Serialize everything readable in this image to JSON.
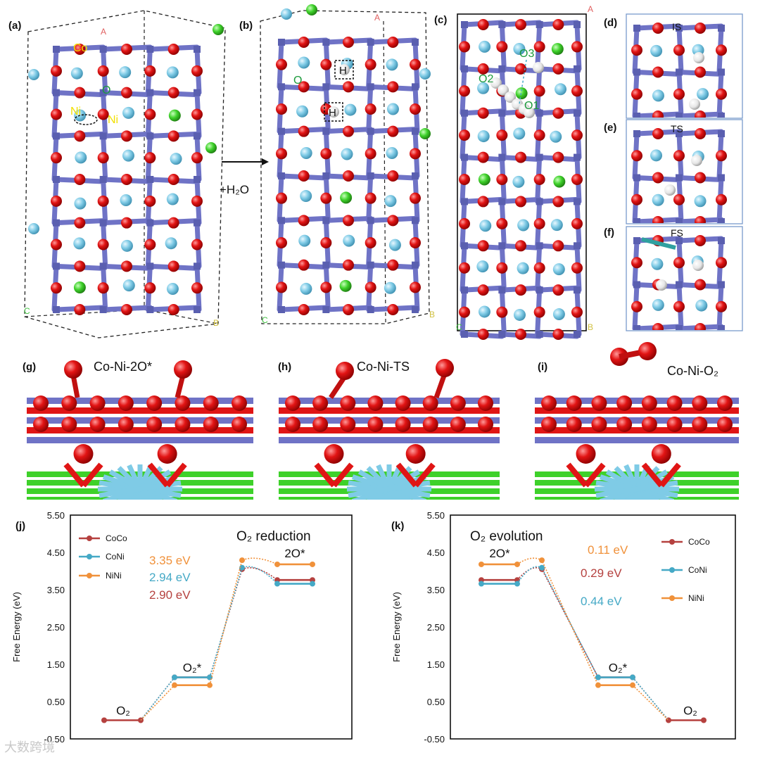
{
  "figure": {
    "panel_labels": {
      "a": "(a)",
      "b": "(b)",
      "c": "(c)",
      "d": "(d)",
      "e": "(e)",
      "f": "(f)",
      "g": "(g)",
      "h": "(h)",
      "i": "(i)",
      "j": "(j)",
      "k": "(k)"
    },
    "panel_a": {
      "atom_labels": [
        "Co",
        "O",
        "Ni",
        "Ni"
      ],
      "axis_labels": [
        "A",
        "C",
        "B"
      ]
    },
    "panel_b": {
      "atom_labels": [
        "O",
        "H",
        "H"
      ],
      "axis_labels": [
        "A",
        "C",
        "B"
      ],
      "arrow_label": "+H₂O"
    },
    "panel_c": {
      "atom_labels": [
        "O3",
        "O2",
        "O1"
      ],
      "axis_labels": [
        "A",
        "C",
        "B"
      ]
    },
    "panel_d": {
      "title": "IS"
    },
    "panel_e": {
      "title": "TS"
    },
    "panel_f": {
      "title": "FS"
    },
    "panel_g": {
      "title": "Co-Ni-2O*"
    },
    "panel_h": {
      "title": "Co-Ni-TS"
    },
    "panel_i": {
      "title": "Co-Ni-O₂"
    },
    "watermark": "大数跨境"
  },
  "colors": {
    "oxygen": "#e01010",
    "metal": "#6f73c6",
    "lightblue": "#7fcbe6",
    "green": "#3ed12a",
    "hydrogen": "#f2f2f2",
    "CoCo": "#b5413f",
    "CoNi": "#45a9c6",
    "NiNi": "#f0913a"
  },
  "chart_data": [
    {
      "type": "line",
      "title": "O₂ reduction",
      "ylabel": "Free Energy (eV)",
      "ylim": [
        -0.5,
        5.5
      ],
      "yticks": [
        "-0.50",
        "0.50",
        "1.50",
        "2.50",
        "3.50",
        "4.50",
        "5.50"
      ],
      "legend": [
        "CoCo",
        "CoNi",
        "NiNi"
      ],
      "state_labels": [
        "O₂",
        "O₂*",
        "2O*"
      ],
      "series": [
        {
          "name": "CoCo",
          "levels": [
            0.0,
            1.15,
            3.76
          ],
          "ts": 4.05
        },
        {
          "name": "CoNi",
          "levels": [
            0.0,
            1.15,
            3.66
          ],
          "ts": 4.09
        },
        {
          "name": "NiNi",
          "levels": [
            0.0,
            0.94,
            4.18
          ],
          "ts": 4.29
        }
      ],
      "barriers": [
        "3.35 eV",
        "2.94 eV",
        "2.90 eV"
      ]
    },
    {
      "type": "line",
      "title": "O₂ evolution",
      "ylabel": "Free Energy (eV)",
      "ylim": [
        -0.5,
        5.5
      ],
      "yticks": [
        "-0.50",
        "0.50",
        "1.50",
        "2.50",
        "3.50",
        "4.50",
        "5.50"
      ],
      "legend": [
        "CoCo",
        "CoNi",
        "NiNi"
      ],
      "state_labels": [
        "2O*",
        "O₂*",
        "O₂"
      ],
      "series": [
        {
          "name": "CoCo",
          "levels": [
            3.76,
            1.15,
            0.0
          ],
          "ts": 4.05
        },
        {
          "name": "CoNi",
          "levels": [
            3.66,
            1.15,
            0.0
          ],
          "ts": 4.09
        },
        {
          "name": "NiNi",
          "levels": [
            4.18,
            0.94,
            0.0
          ],
          "ts": 4.29
        }
      ],
      "barriers": [
        "0.11 eV",
        "0.29 eV",
        "0.44 eV"
      ]
    }
  ]
}
